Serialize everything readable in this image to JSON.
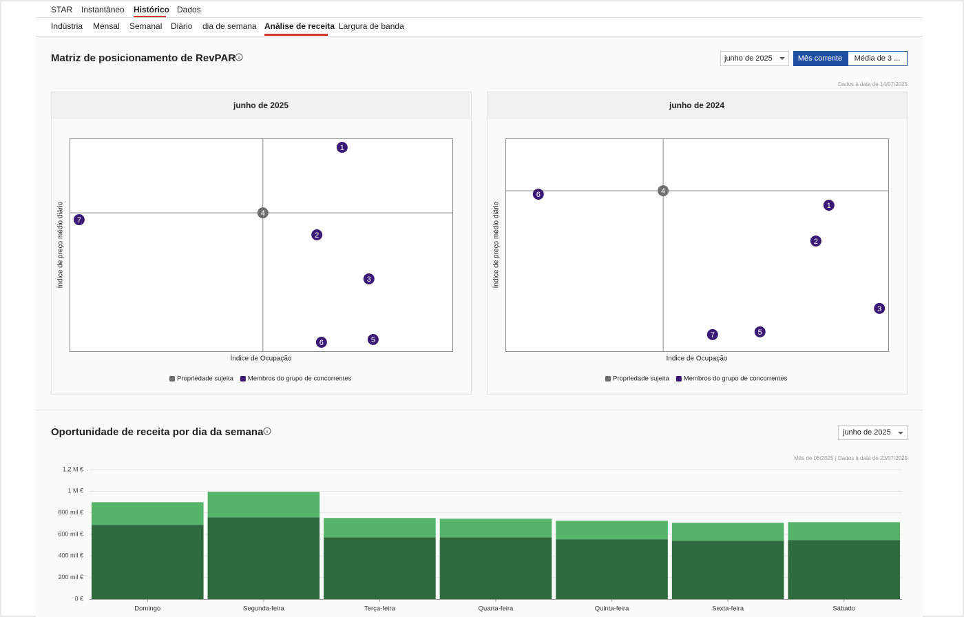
{
  "nav": {
    "primary": [
      "STAR",
      "Instantâneo",
      "Histórico",
      "Dados"
    ],
    "secondary": [
      "Indústria",
      "Mensal",
      "Semanal",
      "Diário",
      "dia de semana",
      "Análise de receita",
      "Largura de banda"
    ]
  },
  "matrix": {
    "title": "Matriz de posicionamento de RevPAR",
    "period_select": "junho de 2025",
    "toggle": [
      "Mês corrente",
      "Média de 3 ..."
    ],
    "note": "Dados à data de 14/07/2025"
  },
  "opportunity": {
    "title": "Oportunidade de receita por dia da semana",
    "period_select": "junho de 2025",
    "note": "Mês de 06/2025 | Dados à data de 23/07/2025"
  },
  "chart_data": [
    {
      "type": "scatter",
      "title": "junho de 2025",
      "x_label": "Índice de Ocupação",
      "y_label": "Índice de preço médio diário",
      "xlim": [
        0,
        100
      ],
      "ylim": [
        0,
        100
      ],
      "series": [
        {
          "name": "Propriedade sujeita",
          "color": "#6e6e6e",
          "x": [
            50.5
          ],
          "values": [
            65.0
          ],
          "labels": [
            "4"
          ]
        },
        {
          "name": "Membros do grupo de concorrentes",
          "color": "#3b1a76",
          "x": [
            71.2,
            64.6,
            78.2,
            79.3,
            65.8,
            2.5
          ],
          "values": [
            95.8,
            54.7,
            34.0,
            5.5,
            4.2,
            61.8
          ],
          "labels": [
            "1",
            "2",
            "3",
            "5",
            "6",
            "7"
          ]
        }
      ]
    },
    {
      "type": "scatter",
      "title": "junho de 2024",
      "x_label": "Índice de Ocupação",
      "y_label": "Índice de preço médio diário",
      "xlim": [
        0,
        100
      ],
      "ylim": [
        0,
        100
      ],
      "series": [
        {
          "name": "Propriedade sujeita",
          "color": "#6e6e6e",
          "x": [
            41.2
          ],
          "values": [
            75.4
          ],
          "labels": [
            "4"
          ]
        },
        {
          "name": "Membros do grupo de concorrentes",
          "color": "#3b1a76",
          "x": [
            84.5,
            81.1,
            97.7,
            66.5,
            8.6,
            54.1
          ],
          "values": [
            68.6,
            51.8,
            20.1,
            9.1,
            73.8,
            7.8
          ],
          "labels": [
            "1",
            "2",
            "3",
            "5",
            "6",
            "7"
          ]
        }
      ]
    },
    {
      "type": "stacked-bar",
      "categories": [
        "Domingo",
        "Segunda-feira",
        "Terça-feira",
        "Quarta-feira",
        "Quinta-feira",
        "Sexta-feira",
        "Sábado"
      ],
      "series": [
        {
          "color": "#2d6a3d",
          "values": [
            688000,
            758000,
            573000,
            573000,
            554000,
            541000,
            548000
          ]
        },
        {
          "color": "#55b36a",
          "values": [
            210000,
            236000,
            179000,
            172000,
            172000,
            166000,
            165000
          ]
        }
      ],
      "ylim": [
        0,
        1200000
      ],
      "yticks": [
        {
          "value": 0,
          "label": "0 €"
        },
        {
          "value": 200000,
          "label": "200 mil €"
        },
        {
          "value": 400000,
          "label": "400 mil €"
        },
        {
          "value": 600000,
          "label": "600 mil €"
        },
        {
          "value": 800000,
          "label": "800 mil €"
        },
        {
          "value": 1000000,
          "label": "1 M €"
        },
        {
          "value": 1200000,
          "label": "1,2 M €"
        }
      ],
      "grid": true
    }
  ]
}
